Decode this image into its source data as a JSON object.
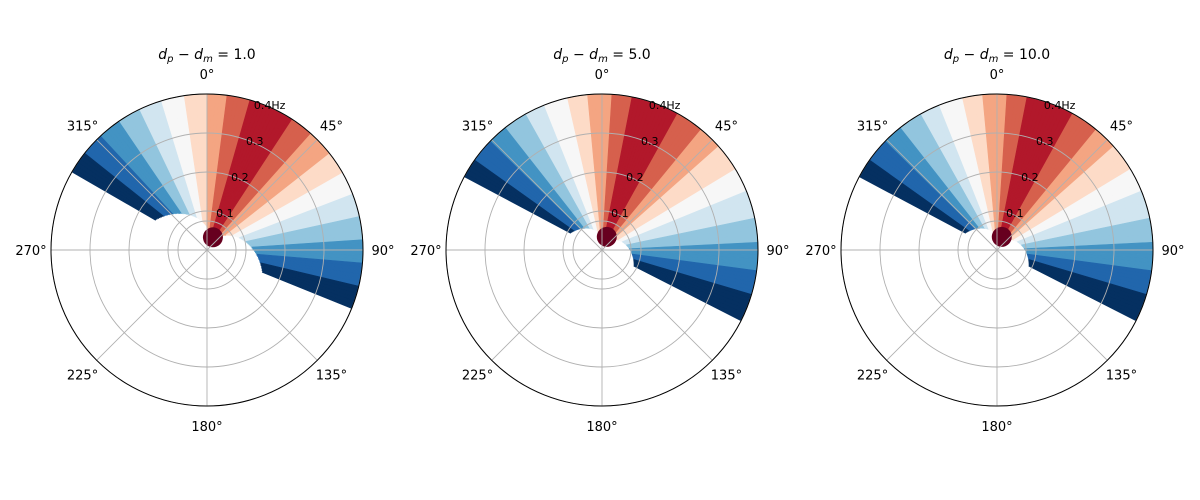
{
  "colors": {
    "levels": [
      "#053061",
      "#2166ac",
      "#4393c3",
      "#92c5de",
      "#d1e5f0",
      "#f7f7f7",
      "#fddbc7",
      "#f4a582",
      "#d6604d",
      "#b2182b",
      "#67001f"
    ],
    "grid": "#b0b0b0",
    "frame": "#000000",
    "background": "#ffffff"
  },
  "chart_data": [
    {
      "type": "polar-contour",
      "title": "d_p − d_m = 1.0",
      "title_parts": {
        "a": "d",
        "a_sub": "p",
        "op": " − ",
        "b": "d",
        "b_sub": "m",
        "rest": " = 1.0"
      },
      "angle_tick_labels": [
        "0°",
        "45°",
        "90°",
        "135°",
        "180°",
        "225°",
        "270°",
        "315°"
      ],
      "angle_ticks_deg": [
        0,
        45,
        90,
        135,
        180,
        225,
        270,
        315
      ],
      "radial_tick_labels": [
        "0.1",
        "0.2",
        "0.3",
        "0.4Hz"
      ],
      "radial_ticks": [
        0.1,
        0.2,
        0.3,
        0.4
      ],
      "rmax": 0.4,
      "direction": "clockwise",
      "zero_location": "N",
      "shadow_edges": [
        {
          "theta_near": [
            88,
            118
          ],
          "theta_far": [
            300,
            106
          ]
        },
        {
          "theta_near": [
            92,
            92
          ],
          "theta_far": [
            90,
            300
          ]
        }
      ],
      "cutoff_min": 0.078,
      "cutoff_max": 0.4,
      "start_deg": -60,
      "end_deg": 112,
      "peak_deg": 25,
      "ridge_deg": 25
    },
    {
      "type": "polar-contour",
      "title": "d_p − d_m = 5.0",
      "title_parts": {
        "a": "d",
        "a_sub": "p",
        "op": " − ",
        "b": "d",
        "b_sub": "m",
        "rest": " = 5.0"
      },
      "angle_tick_labels": [
        "0°",
        "45°",
        "90°",
        "135°",
        "180°",
        "225°",
        "270°",
        "315°"
      ],
      "angle_ticks_deg": [
        0,
        45,
        90,
        135,
        180,
        225,
        270,
        315
      ],
      "radial_tick_labels": [
        "0.1",
        "0.2",
        "0.3",
        "0.4Hz"
      ],
      "radial_ticks": [
        0.1,
        0.2,
        0.3,
        0.4
      ],
      "rmax": 0.4,
      "start_deg": -62,
      "end_deg": 117,
      "peak_deg": 20
    },
    {
      "type": "polar-contour",
      "title": "d_p − d_m = 10.0",
      "title_parts": {
        "a": "d",
        "a_sub": "p",
        "op": " − ",
        "b": "d",
        "b_sub": "m",
        "rest": " = 10.0"
      },
      "angle_tick_labels": [
        "0°",
        "45°",
        "90°",
        "135°",
        "180°",
        "225°",
        "270°",
        "315°"
      ],
      "angle_ticks_deg": [
        0,
        45,
        90,
        135,
        180,
        225,
        270,
        315
      ],
      "radial_tick_labels": [
        "0.1",
        "0.2",
        "0.3",
        "0.4Hz"
      ],
      "radial_ticks": [
        0.1,
        0.2,
        0.3,
        0.4
      ],
      "rmax": 0.4,
      "start_deg": -62,
      "end_deg": 117,
      "peak_deg": 20
    }
  ]
}
